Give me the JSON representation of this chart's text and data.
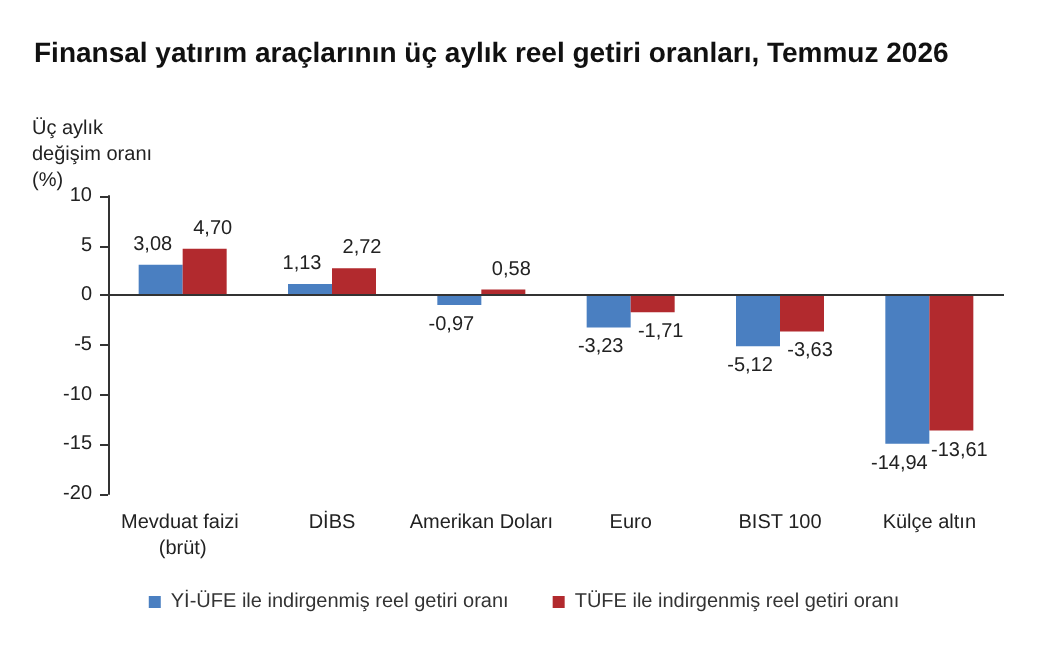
{
  "chart_data": {
    "type": "bar",
    "title": "Finansal yatırım araçlarının üç aylık reel getiri oranları, Temmuz 2026",
    "ylabel": "Üç aylık değişim oranı (%)",
    "categories": [
      "Mevduat faizi (brüt)",
      "DİBS",
      "Amerikan Doları",
      "Euro",
      "BIST 100",
      "Külçe altın"
    ],
    "series": [
      {
        "name": "Yİ-ÜFE ile indirgenmiş reel getiri oranı",
        "color": "#4a7fc1",
        "values": [
          3.08,
          1.13,
          -0.97,
          -3.23,
          -5.12,
          -14.94
        ],
        "value_labels": [
          "3,08",
          "1,13",
          "-0,97",
          "-3,23",
          "-5,12",
          "-14,94"
        ]
      },
      {
        "name": "TÜFE ile indirgenmiş reel getiri oranı",
        "color": "#b22a2e",
        "values": [
          4.7,
          2.72,
          0.58,
          -1.71,
          -3.63,
          -13.61
        ],
        "value_labels": [
          "4,70",
          "2,72",
          "0,58",
          "-1,71",
          "-3,63",
          "-13,61"
        ]
      }
    ],
    "ref_lines": [
      {
        "axis": "y",
        "value": 0,
        "color": "#333333"
      }
    ],
    "ylim": [
      -20,
      10
    ],
    "yticks": [
      -20,
      -15,
      -10,
      -5,
      0,
      5,
      10
    ],
    "grid": false,
    "legend": "bottom"
  }
}
